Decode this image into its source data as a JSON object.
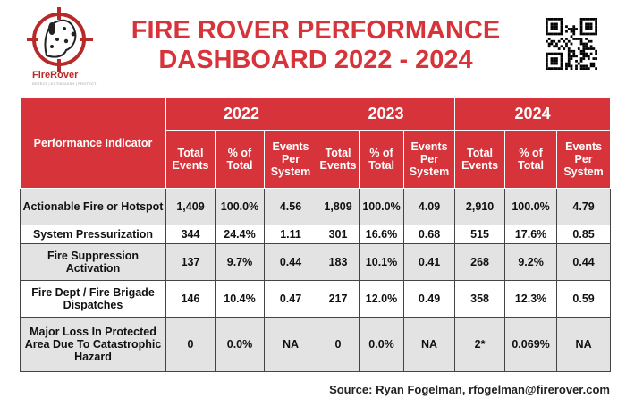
{
  "logo": {
    "brand": "FireRover",
    "tagline": "DETECT | EXTINGUISH | PROTECT"
  },
  "title": {
    "line1": "FIRE ROVER PERFORMANCE",
    "line2": "DASHBOARD 2022 - 2024"
  },
  "table": {
    "indicator_header": "Performance Indicator",
    "years": [
      "2022",
      "2023",
      "2024"
    ],
    "subheaders": [
      "Total Events",
      "% of Total",
      "Events Per System"
    ],
    "rows": [
      {
        "label": "Actionable Fire or Hotspot",
        "values": [
          "1,409",
          "100.0%",
          "4.56",
          "1,809",
          "100.0%",
          "4.09",
          "2,910",
          "100.0%",
          "4.79"
        ]
      },
      {
        "label": "System Pressurization",
        "values": [
          "344",
          "24.4%",
          "1.11",
          "301",
          "16.6%",
          "0.68",
          "515",
          "17.6%",
          "0.85"
        ]
      },
      {
        "label": "Fire Suppression Activation",
        "values": [
          "137",
          "9.7%",
          "0.44",
          "183",
          "10.1%",
          "0.41",
          "268",
          "9.2%",
          "0.44"
        ]
      },
      {
        "label": "Fire Dept / Fire Brigade Dispatches",
        "values": [
          "146",
          "10.4%",
          "0.47",
          "217",
          "12.0%",
          "0.49",
          "358",
          "12.3%",
          "0.59"
        ]
      },
      {
        "label": "Major Loss In Protected Area Due To Catastrophic Hazard",
        "values": [
          "0",
          "0.0%",
          "NA",
          "0",
          "0.0%",
          "NA",
          "2*",
          "0.069%",
          "NA"
        ]
      }
    ]
  },
  "source": "Source: Ryan Fogelman, rfogelman@firerover.com"
}
